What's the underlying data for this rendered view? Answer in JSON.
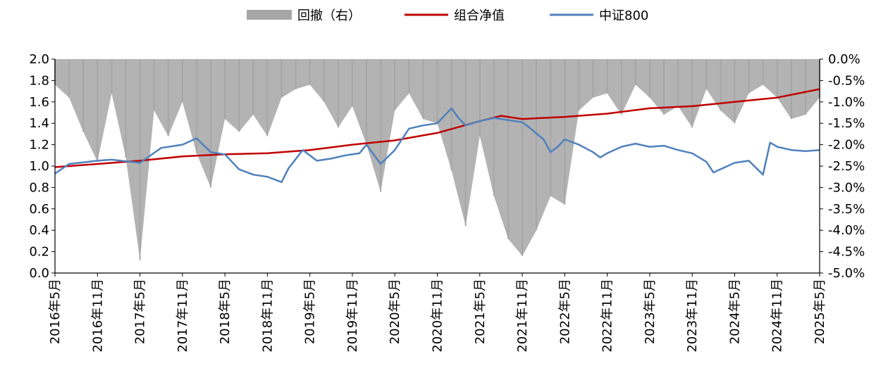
{
  "chart_data": {
    "type": "line",
    "legend_position": "top-center",
    "grid": false,
    "legend": [
      {
        "key": "drawdown",
        "label": "回撤（右）"
      },
      {
        "key": "nav",
        "label": "组合净值"
      },
      {
        "key": "csi800",
        "label": "中证800"
      }
    ],
    "colors": {
      "drawdown": "#a6a6a6",
      "nav": "#c00000",
      "csi800": "#4f81bd"
    },
    "left_axis": {
      "ylim": [
        0.0,
        2.0
      ],
      "ticks": [
        "0.0",
        "0.2",
        "0.4",
        "0.6",
        "0.8",
        "1.0",
        "1.2",
        "1.4",
        "1.6",
        "1.8",
        "2.0"
      ]
    },
    "right_axis": {
      "ylim": [
        -5.0,
        0.0
      ],
      "unit": "%",
      "ticks": [
        "-5.0%",
        "-4.5%",
        "-4.0%",
        "-3.5%",
        "-3.0%",
        "-2.5%",
        "-2.0%",
        "-1.5%",
        "-1.0%",
        "-0.5%",
        "0.0%"
      ]
    },
    "x_ticks": [
      "2016年5月",
      "2016年11月",
      "2017年5月",
      "2017年11月",
      "2018年5月",
      "2018年11月",
      "2019年5月",
      "2019年11月",
      "2020年5月",
      "2020年11月",
      "2021年5月",
      "2021年11月",
      "2022年5月",
      "2022年11月",
      "2023年5月",
      "2023年11月",
      "2024年5月",
      "2024年11月",
      "2025年5月"
    ],
    "x_range": [
      "2016-05",
      "2025-05"
    ],
    "series": [
      {
        "name": "组合净值",
        "axis": "left",
        "x": [
          "2016-05",
          "2016-11",
          "2017-05",
          "2017-11",
          "2018-05",
          "2018-11",
          "2019-05",
          "2019-11",
          "2020-05",
          "2020-11",
          "2021-05",
          "2021-08",
          "2021-11",
          "2022-05",
          "2022-11",
          "2023-05",
          "2023-11",
          "2024-05",
          "2024-11",
          "2025-05"
        ],
        "values": [
          0.99,
          1.02,
          1.05,
          1.09,
          1.11,
          1.12,
          1.15,
          1.2,
          1.24,
          1.31,
          1.42,
          1.47,
          1.44,
          1.46,
          1.49,
          1.54,
          1.56,
          1.6,
          1.64,
          1.72
        ]
      },
      {
        "name": "中证800",
        "axis": "left",
        "x": [
          "2016-05",
          "2016-07",
          "2016-11",
          "2017-01",
          "2017-05",
          "2017-08",
          "2017-11",
          "2018-01",
          "2018-03",
          "2018-05",
          "2018-07",
          "2018-09",
          "2018-11",
          "2019-01",
          "2019-02",
          "2019-04",
          "2019-06",
          "2019-08",
          "2019-10",
          "2019-12",
          "2020-01",
          "2020-03",
          "2020-05",
          "2020-07",
          "2020-09",
          "2020-11",
          "2021-01",
          "2021-02",
          "2021-03",
          "2021-05",
          "2021-07",
          "2021-09",
          "2021-11",
          "2021-12",
          "2022-02",
          "2022-03",
          "2022-04",
          "2022-05",
          "2022-07",
          "2022-09",
          "2022-10",
          "2022-11",
          "2023-01",
          "2023-03",
          "2023-05",
          "2023-07",
          "2023-09",
          "2023-11",
          "2024-01",
          "2024-02",
          "2024-05",
          "2024-07",
          "2024-09",
          "2024-10",
          "2024-11",
          "2025-01",
          "2025-03",
          "2025-05"
        ],
        "values": [
          0.93,
          1.02,
          1.05,
          1.06,
          1.03,
          1.17,
          1.2,
          1.26,
          1.13,
          1.11,
          0.97,
          0.92,
          0.9,
          0.85,
          0.98,
          1.15,
          1.05,
          1.07,
          1.1,
          1.12,
          1.2,
          1.02,
          1.15,
          1.35,
          1.38,
          1.4,
          1.54,
          1.45,
          1.38,
          1.42,
          1.45,
          1.43,
          1.41,
          1.36,
          1.25,
          1.13,
          1.18,
          1.25,
          1.2,
          1.13,
          1.08,
          1.12,
          1.18,
          1.21,
          1.18,
          1.19,
          1.15,
          1.12,
          1.04,
          0.94,
          1.03,
          1.05,
          0.92,
          1.22,
          1.18,
          1.15,
          1.14,
          1.15
        ]
      },
      {
        "name": "回撤（右）",
        "axis": "right",
        "type": "area",
        "x": [
          "2016-05",
          "2016-07",
          "2016-09",
          "2016-11",
          "2017-01",
          "2017-03",
          "2017-05",
          "2017-07",
          "2017-09",
          "2017-11",
          "2018-01",
          "2018-03",
          "2018-05",
          "2018-07",
          "2018-09",
          "2018-11",
          "2019-01",
          "2019-03",
          "2019-05",
          "2019-07",
          "2019-09",
          "2019-11",
          "2020-01",
          "2020-03",
          "2020-05",
          "2020-07",
          "2020-09",
          "2020-11",
          "2021-01",
          "2021-03",
          "2021-05",
          "2021-07",
          "2021-09",
          "2021-11",
          "2022-01",
          "2022-03",
          "2022-05",
          "2022-07",
          "2022-09",
          "2022-11",
          "2023-01",
          "2023-03",
          "2023-05",
          "2023-07",
          "2023-09",
          "2023-11",
          "2024-01",
          "2024-03",
          "2024-05",
          "2024-07",
          "2024-09",
          "2024-11",
          "2025-01",
          "2025-03",
          "2025-05"
        ],
        "values": [
          -0.6,
          -0.9,
          -1.7,
          -2.4,
          -0.8,
          -2.3,
          -4.7,
          -1.2,
          -1.8,
          -1.0,
          -2.2,
          -3.0,
          -1.4,
          -1.7,
          -1.3,
          -1.8,
          -0.9,
          -0.7,
          -0.6,
          -1.0,
          -1.6,
          -1.1,
          -2.0,
          -3.1,
          -1.2,
          -0.8,
          -1.4,
          -1.5,
          -2.6,
          -3.9,
          -1.8,
          -3.2,
          -4.2,
          -4.6,
          -4.0,
          -3.2,
          -3.4,
          -1.2,
          -0.9,
          -0.8,
          -1.3,
          -0.6,
          -0.9,
          -1.3,
          -1.1,
          -1.6,
          -0.7,
          -1.2,
          -1.5,
          -0.8,
          -0.6,
          -0.9,
          -1.4,
          -1.3,
          -0.9
        ]
      }
    ]
  }
}
